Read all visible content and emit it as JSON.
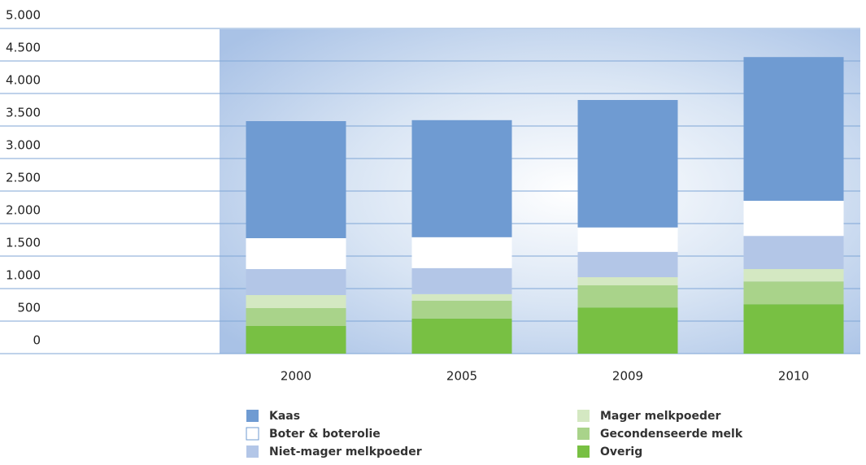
{
  "chart_data": {
    "type": "stacked_bar",
    "categories": [
      "2000",
      "2005",
      "2009",
      "2010"
    ],
    "series": [
      {
        "name": "Kaas",
        "color": "#6f9bd2",
        "values": [
          1800,
          1800,
          1960,
          2210
        ]
      },
      {
        "name": "Boter & boterolie",
        "color": "#ffffff",
        "values": [
          475,
          475,
          375,
          540
        ]
      },
      {
        "name": "Niet-mager melkpoeder",
        "color": "#b3c6e7",
        "values": [
          400,
          400,
          390,
          510
        ]
      },
      {
        "name": "Mager melkpoeder",
        "color": "#d4e8c2",
        "values": [
          200,
          100,
          125,
          190
        ]
      },
      {
        "name": "Gecondenseerde melk",
        "color": "#a9d38a",
        "values": [
          275,
          275,
          340,
          350
        ]
      },
      {
        "name": "Overig",
        "color": "#78c043",
        "values": [
          425,
          540,
          710,
          760
        ]
      }
    ],
    "ylim": [
      0,
      5000
    ],
    "yticks": [
      0,
      500,
      {
        "value": 1000,
        "label": "1.000"
      },
      {
        "value": 1500,
        "label": "1.500"
      },
      {
        "value": 2000,
        "label": "2.000"
      },
      {
        "value": 2500,
        "label": "2.500"
      },
      {
        "value": 3000,
        "label": "3.000"
      },
      {
        "value": 3500,
        "label": "3.500"
      },
      {
        "value": 4000,
        "label": "4.000"
      },
      {
        "value": 4500,
        "label": "4.500"
      },
      {
        "value": 5000,
        "label": "5.000"
      }
    ],
    "grid": true
  }
}
